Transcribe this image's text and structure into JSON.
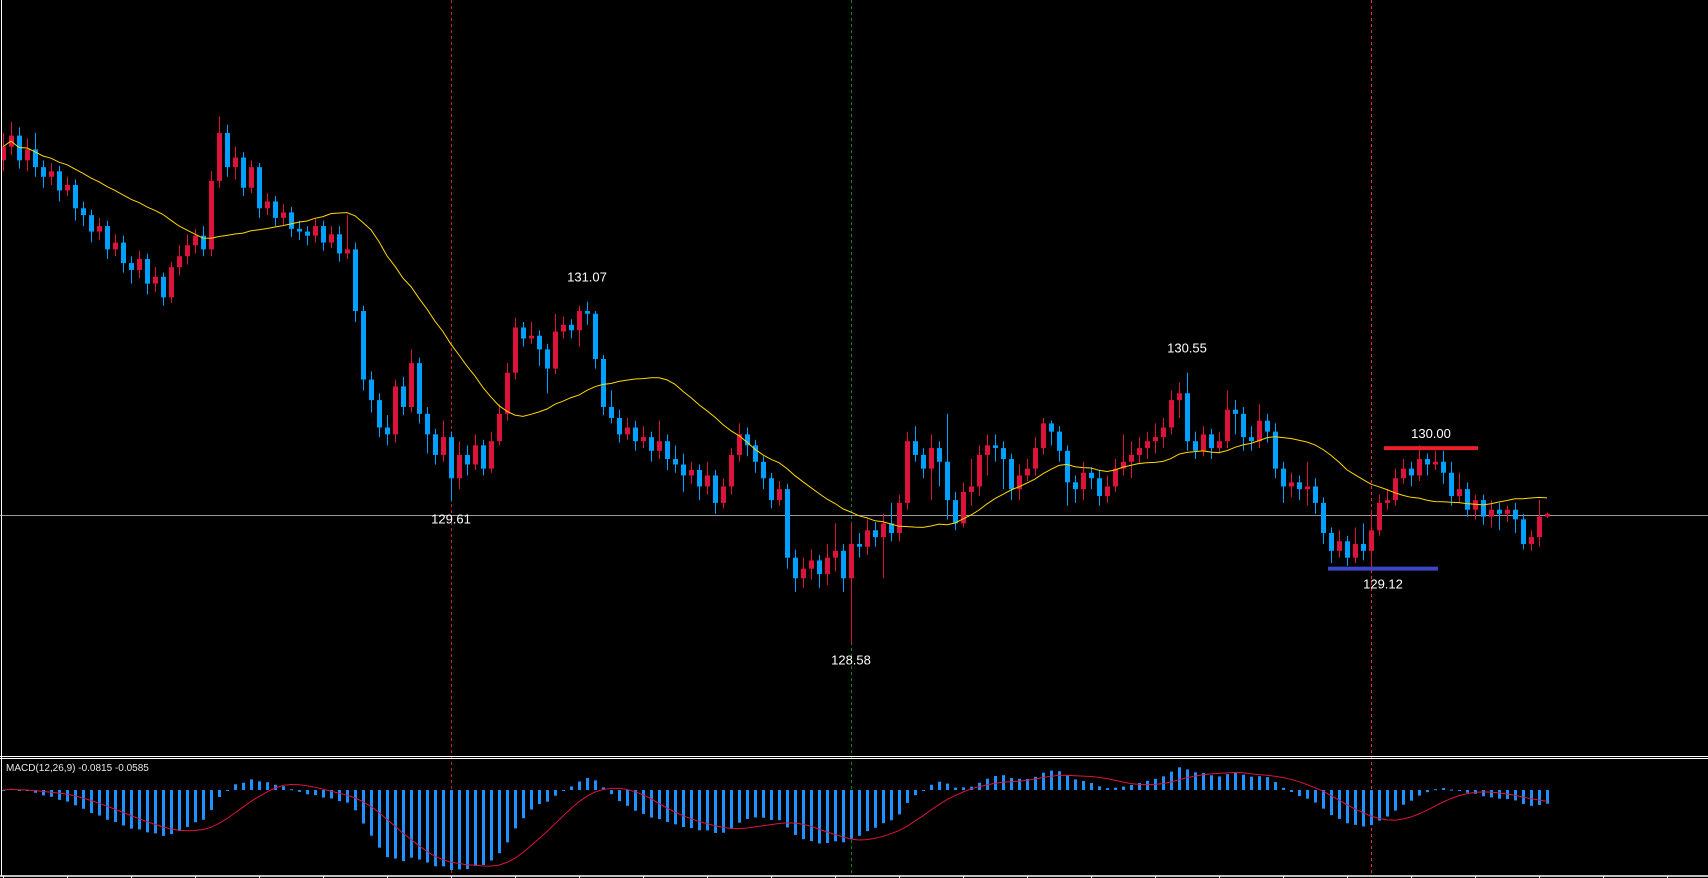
{
  "chart_data": {
    "type": "candlestick",
    "title": "",
    "ylim": [
      127.76,
      133.27
    ],
    "grid": false,
    "colors": {
      "up": "#DC143C",
      "down": "#00A0FF",
      "moving_average": "#FFD700",
      "bid_line": "#9A9A9A",
      "macd_histogram": "#1E90FF",
      "macd_signal": "#DC143C",
      "background": "#000000",
      "frame": "#FFFFFF"
    },
    "moving_average_period": 21,
    "bid_price": 129.51,
    "candle_fields": [
      "open",
      "high",
      "low",
      "close"
    ],
    "candles": [
      [
        132.1,
        132.3,
        132.02,
        132.2
      ],
      [
        132.2,
        132.38,
        132.14,
        132.28
      ],
      [
        132.28,
        132.34,
        132.04,
        132.1
      ],
      [
        132.1,
        132.26,
        132.02,
        132.18
      ],
      [
        132.18,
        132.3,
        131.98,
        132.05
      ],
      [
        132.05,
        132.1,
        131.9,
        131.98
      ],
      [
        131.98,
        132.08,
        131.92,
        132.02
      ],
      [
        132.02,
        132.06,
        131.8,
        131.88
      ],
      [
        131.88,
        131.98,
        131.84,
        131.92
      ],
      [
        131.92,
        131.96,
        131.66,
        131.75
      ],
      [
        131.75,
        131.8,
        131.62,
        131.7
      ],
      [
        131.7,
        131.74,
        131.5,
        131.58
      ],
      [
        131.58,
        131.68,
        131.52,
        131.62
      ],
      [
        131.62,
        131.66,
        131.38,
        131.45
      ],
      [
        131.45,
        131.56,
        131.4,
        131.5
      ],
      [
        131.5,
        131.55,
        131.28,
        131.35
      ],
      [
        131.35,
        131.4,
        131.2,
        131.3
      ],
      [
        131.3,
        131.44,
        131.24,
        131.38
      ],
      [
        131.38,
        131.42,
        131.12,
        131.2
      ],
      [
        131.2,
        131.32,
        131.14,
        131.25
      ],
      [
        131.25,
        131.28,
        131.04,
        131.1
      ],
      [
        131.1,
        131.36,
        131.06,
        131.32
      ],
      [
        131.32,
        131.48,
        131.26,
        131.4
      ],
      [
        131.4,
        131.56,
        131.34,
        131.48
      ],
      [
        131.48,
        131.6,
        131.42,
        131.55
      ],
      [
        131.55,
        131.62,
        131.4,
        131.45
      ],
      [
        131.45,
        132.02,
        131.4,
        131.95
      ],
      [
        131.95,
        132.42,
        131.9,
        132.3
      ],
      [
        132.3,
        132.36,
        131.98,
        132.05
      ],
      [
        132.05,
        132.2,
        131.96,
        132.12
      ],
      [
        132.12,
        132.16,
        131.84,
        131.9
      ],
      [
        131.9,
        132.1,
        131.86,
        132.05
      ],
      [
        132.05,
        132.08,
        131.68,
        131.75
      ],
      [
        131.75,
        131.86,
        131.7,
        131.8
      ],
      [
        131.8,
        131.84,
        131.62,
        131.68
      ],
      [
        131.68,
        131.78,
        131.62,
        131.72
      ],
      [
        131.72,
        131.76,
        131.54,
        131.6
      ],
      [
        131.6,
        131.66,
        131.52,
        131.58
      ],
      [
        131.58,
        131.62,
        131.48,
        131.55
      ],
      [
        131.55,
        131.68,
        131.5,
        131.62
      ],
      [
        131.62,
        131.66,
        131.44,
        131.5
      ],
      [
        131.5,
        131.62,
        131.46,
        131.56
      ],
      [
        131.56,
        131.62,
        131.36,
        131.42
      ],
      [
        131.42,
        131.7,
        131.38,
        131.45
      ],
      [
        131.45,
        131.5,
        130.92,
        131.0
      ],
      [
        131.0,
        131.04,
        130.42,
        130.5
      ],
      [
        130.5,
        130.56,
        130.26,
        130.35
      ],
      [
        130.35,
        130.4,
        130.08,
        130.15
      ],
      [
        130.15,
        130.24,
        130.02,
        130.1
      ],
      [
        130.1,
        130.5,
        130.04,
        130.45
      ],
      [
        130.45,
        130.52,
        130.24,
        130.3
      ],
      [
        130.3,
        130.72,
        130.26,
        130.62
      ],
      [
        130.62,
        130.66,
        130.18,
        130.25
      ],
      [
        130.25,
        130.3,
        129.96,
        130.1
      ],
      [
        130.1,
        130.14,
        129.88,
        129.95
      ],
      [
        129.95,
        130.2,
        129.9,
        130.08
      ],
      [
        130.08,
        130.12,
        129.61,
        129.78
      ],
      [
        129.78,
        130.05,
        129.7,
        129.95
      ],
      [
        129.95,
        130.02,
        129.8,
        129.88
      ],
      [
        129.88,
        130.1,
        129.84,
        130.02
      ],
      [
        130.02,
        130.06,
        129.8,
        129.85
      ],
      [
        129.85,
        130.12,
        129.82,
        130.05
      ],
      [
        130.05,
        130.32,
        130.02,
        130.25
      ],
      [
        130.25,
        130.62,
        130.2,
        130.55
      ],
      [
        130.55,
        130.95,
        130.5,
        130.88
      ],
      [
        130.88,
        130.92,
        130.74,
        130.8
      ],
      [
        130.8,
        130.92,
        130.76,
        130.82
      ],
      [
        130.82,
        130.86,
        130.6,
        130.72
      ],
      [
        130.72,
        130.76,
        130.4,
        130.58
      ],
      [
        130.58,
        130.98,
        130.54,
        130.85
      ],
      [
        130.85,
        130.96,
        130.8,
        130.9
      ],
      [
        130.9,
        130.94,
        130.8,
        130.86
      ],
      [
        130.86,
        131.04,
        130.74,
        131.0
      ],
      [
        131.0,
        131.07,
        130.9,
        130.98
      ],
      [
        130.98,
        131.0,
        130.58,
        130.65
      ],
      [
        130.65,
        130.68,
        130.24,
        130.3
      ],
      [
        130.3,
        130.42,
        130.18,
        130.22
      ],
      [
        130.22,
        130.28,
        130.04,
        130.1
      ],
      [
        130.1,
        130.22,
        130.06,
        130.15
      ],
      [
        130.15,
        130.2,
        129.98,
        130.05
      ],
      [
        130.05,
        130.16,
        130.0,
        130.08
      ],
      [
        130.08,
        130.12,
        129.9,
        129.98
      ],
      [
        129.98,
        130.2,
        129.92,
        130.05
      ],
      [
        130.05,
        130.1,
        129.84,
        129.92
      ],
      [
        129.92,
        130.02,
        129.82,
        129.88
      ],
      [
        129.88,
        129.96,
        129.68,
        129.8
      ],
      [
        129.8,
        129.9,
        129.74,
        129.84
      ],
      [
        129.84,
        129.88,
        129.62,
        129.72
      ],
      [
        129.72,
        129.9,
        129.66,
        129.8
      ],
      [
        129.8,
        129.84,
        129.52,
        129.6
      ],
      [
        129.6,
        129.78,
        129.56,
        129.72
      ],
      [
        129.72,
        130.0,
        129.66,
        129.95
      ],
      [
        129.95,
        130.18,
        129.9,
        130.1
      ],
      [
        130.1,
        130.15,
        129.94,
        130.02
      ],
      [
        130.02,
        130.06,
        129.82,
        129.9
      ],
      [
        129.9,
        129.94,
        129.7,
        129.78
      ],
      [
        129.78,
        129.82,
        129.56,
        129.62
      ],
      [
        129.62,
        129.76,
        129.58,
        129.7
      ],
      [
        129.7,
        129.74,
        129.12,
        129.2
      ],
      [
        129.2,
        129.26,
        128.95,
        129.05
      ],
      [
        129.05,
        129.2,
        128.98,
        129.12
      ],
      [
        129.12,
        129.26,
        129.04,
        129.18
      ],
      [
        129.18,
        129.22,
        128.98,
        129.08
      ],
      [
        129.08,
        129.3,
        129.0,
        129.2
      ],
      [
        129.2,
        129.45,
        129.1,
        129.25
      ],
      [
        129.25,
        129.3,
        128.95,
        129.05
      ],
      [
        129.05,
        129.45,
        128.58,
        129.3
      ],
      [
        129.3,
        129.38,
        129.2,
        129.28
      ],
      [
        129.28,
        129.48,
        129.22,
        129.4
      ],
      [
        129.4,
        129.46,
        129.28,
        129.35
      ],
      [
        129.35,
        129.52,
        129.05,
        129.45
      ],
      [
        129.45,
        129.6,
        129.32,
        129.38
      ],
      [
        129.38,
        129.66,
        129.32,
        129.6
      ],
      [
        129.6,
        130.12,
        129.55,
        130.05
      ],
      [
        130.05,
        130.16,
        129.9,
        129.95
      ],
      [
        129.95,
        130.0,
        129.78,
        129.85
      ],
      [
        129.85,
        130.1,
        129.62,
        130.0
      ],
      [
        130.0,
        130.05,
        129.72,
        129.9
      ],
      [
        129.9,
        130.25,
        129.48,
        129.62
      ],
      [
        129.62,
        129.68,
        129.4,
        129.45
      ],
      [
        129.45,
        129.75,
        129.42,
        129.68
      ],
      [
        129.68,
        129.92,
        129.58,
        129.72
      ],
      [
        129.72,
        130.02,
        129.65,
        129.95
      ],
      [
        129.95,
        130.1,
        129.8,
        130.02
      ],
      [
        130.02,
        130.1,
        129.9,
        130.0
      ],
      [
        130.0,
        130.05,
        129.7,
        129.92
      ],
      [
        129.92,
        129.96,
        129.62,
        129.7
      ],
      [
        129.7,
        129.88,
        129.62,
        129.8
      ],
      [
        129.8,
        129.92,
        129.76,
        129.85
      ],
      [
        129.85,
        130.08,
        129.8,
        130.0
      ],
      [
        130.0,
        130.22,
        129.95,
        130.18
      ],
      [
        130.18,
        130.2,
        130.02,
        130.12
      ],
      [
        130.12,
        130.16,
        129.9,
        129.98
      ],
      [
        129.98,
        130.02,
        129.58,
        129.75
      ],
      [
        129.75,
        129.8,
        129.6,
        129.7
      ],
      [
        129.7,
        129.9,
        129.62,
        129.82
      ],
      [
        129.82,
        129.86,
        129.7,
        129.78
      ],
      [
        129.78,
        129.84,
        129.58,
        129.65
      ],
      [
        129.65,
        129.8,
        129.6,
        129.72
      ],
      [
        129.72,
        129.92,
        129.68,
        129.85
      ],
      [
        129.85,
        130.1,
        129.8,
        129.9
      ],
      [
        129.9,
        130.05,
        129.78,
        129.95
      ],
      [
        129.95,
        130.08,
        129.88,
        130.0
      ],
      [
        130.0,
        130.12,
        129.92,
        130.05
      ],
      [
        130.05,
        130.18,
        129.96,
        130.08
      ],
      [
        130.08,
        130.22,
        130.0,
        130.15
      ],
      [
        130.15,
        130.42,
        130.1,
        130.35
      ],
      [
        130.35,
        130.48,
        130.22,
        130.4
      ],
      [
        130.4,
        130.55,
        129.98,
        130.05
      ],
      [
        130.05,
        130.12,
        129.92,
        129.98
      ],
      [
        129.98,
        130.16,
        129.94,
        130.1
      ],
      [
        130.1,
        130.14,
        129.92,
        130.0
      ],
      [
        130.0,
        130.12,
        129.96,
        130.05
      ],
      [
        130.05,
        130.42,
        130.0,
        130.28
      ],
      [
        130.28,
        130.35,
        130.1,
        130.25
      ],
      [
        130.25,
        130.3,
        129.98,
        130.08
      ],
      [
        130.08,
        130.16,
        129.98,
        130.05
      ],
      [
        130.05,
        130.32,
        130.0,
        130.2
      ],
      [
        130.2,
        130.25,
        130.04,
        130.12
      ],
      [
        130.12,
        130.18,
        129.78,
        129.85
      ],
      [
        129.85,
        129.9,
        129.6,
        129.72
      ],
      [
        129.72,
        129.82,
        129.64,
        129.75
      ],
      [
        129.75,
        129.8,
        129.62,
        129.7
      ],
      [
        129.7,
        129.9,
        129.58,
        129.72
      ],
      [
        129.72,
        129.78,
        129.52,
        129.6
      ],
      [
        129.6,
        129.64,
        129.3,
        129.38
      ],
      [
        129.38,
        129.42,
        129.16,
        129.25
      ],
      [
        129.25,
        129.4,
        129.2,
        129.32
      ],
      [
        129.32,
        129.36,
        129.14,
        129.2
      ],
      [
        129.2,
        129.42,
        129.16,
        129.3
      ],
      [
        129.3,
        129.45,
        129.18,
        129.25
      ],
      [
        129.25,
        129.55,
        129.12,
        129.4
      ],
      [
        129.4,
        129.66,
        129.36,
        129.6
      ],
      [
        129.6,
        129.7,
        129.55,
        129.62
      ],
      [
        129.62,
        129.85,
        129.58,
        129.78
      ],
      [
        129.78,
        129.92,
        129.74,
        129.85
      ],
      [
        129.85,
        129.9,
        129.72,
        129.8
      ],
      [
        129.8,
        130.02,
        129.76,
        129.92
      ],
      [
        129.92,
        129.96,
        129.8,
        129.88
      ],
      [
        129.88,
        129.98,
        129.84,
        129.9
      ],
      [
        129.9,
        129.98,
        129.74,
        129.82
      ],
      [
        129.82,
        129.9,
        129.58,
        129.65
      ],
      [
        129.65,
        129.82,
        129.6,
        129.7
      ],
      [
        129.7,
        129.75,
        129.5,
        129.55
      ],
      [
        129.55,
        129.66,
        129.48,
        129.62
      ],
      [
        129.62,
        129.66,
        129.44,
        129.5
      ],
      [
        129.5,
        129.62,
        129.42,
        129.55
      ],
      [
        129.55,
        129.6,
        129.4,
        129.52
      ],
      [
        129.52,
        129.58,
        129.46,
        129.55
      ],
      [
        129.55,
        129.6,
        129.38,
        129.48
      ],
      [
        129.48,
        129.52,
        129.26,
        129.3
      ],
      [
        129.3,
        129.4,
        129.25,
        129.35
      ],
      [
        129.35,
        129.62,
        129.28,
        129.5
      ],
      [
        129.5,
        129.53,
        129.49,
        129.52
      ]
    ],
    "annotations": [
      {
        "text": "131.07",
        "bar": 73,
        "price": 131.07,
        "side": "above"
      },
      {
        "text": "129.61",
        "bar": 56,
        "price": 129.61,
        "side": "below"
      },
      {
        "text": "128.58",
        "bar": 106,
        "price": 128.58,
        "side": "below"
      },
      {
        "text": "130.55",
        "bar": 148,
        "price": 130.55,
        "side": "above"
      }
    ],
    "levels": [
      {
        "text": "130.00",
        "price": 130.0,
        "from_bar": 173,
        "to_bar": 184,
        "color": "#E8202A",
        "side": "above"
      },
      {
        "text": "129.12",
        "price": 129.12,
        "from_bar": 166,
        "to_bar": 179,
        "color": "#3A45C8",
        "side": "below"
      }
    ],
    "vertical_markers": [
      {
        "bar": 56,
        "color": "#D0202A"
      },
      {
        "bar": 106,
        "color": "#0A8A0A"
      },
      {
        "bar": 171,
        "color": "#E8303A"
      }
    ],
    "macd": {
      "label": "MACD(12,26,9) -0.0815 -0.0585",
      "fast": 12,
      "slow": 26,
      "signal": 9,
      "main_value": -0.0815,
      "signal_value": -0.0585
    }
  }
}
